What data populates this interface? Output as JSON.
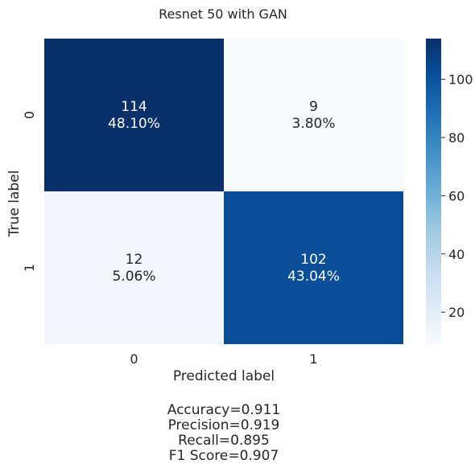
{
  "chart_data": {
    "type": "heatmap",
    "title": "Resnet 50 with GAN",
    "xlabel": "Predicted label",
    "ylabel": "True label",
    "x_tick_labels": [
      "0",
      "1"
    ],
    "y_tick_labels": [
      "0",
      "1"
    ],
    "values": [
      [
        114,
        9
      ],
      [
        12,
        102
      ]
    ],
    "percentages": [
      [
        "48.10%",
        "3.80%"
      ],
      [
        "5.06%",
        "43.04%"
      ]
    ],
    "colormap": "Blues",
    "colorbar": {
      "range": [
        9,
        114
      ],
      "ticks": [
        20,
        40,
        60,
        80,
        100
      ],
      "low_color": "#f7fbff",
      "high_color": "#08306b"
    },
    "metrics_lines": [
      "Accuracy=0.911",
      "Precision=0.919",
      "Recall=0.895",
      "F1 Score=0.907"
    ],
    "grid": false
  }
}
